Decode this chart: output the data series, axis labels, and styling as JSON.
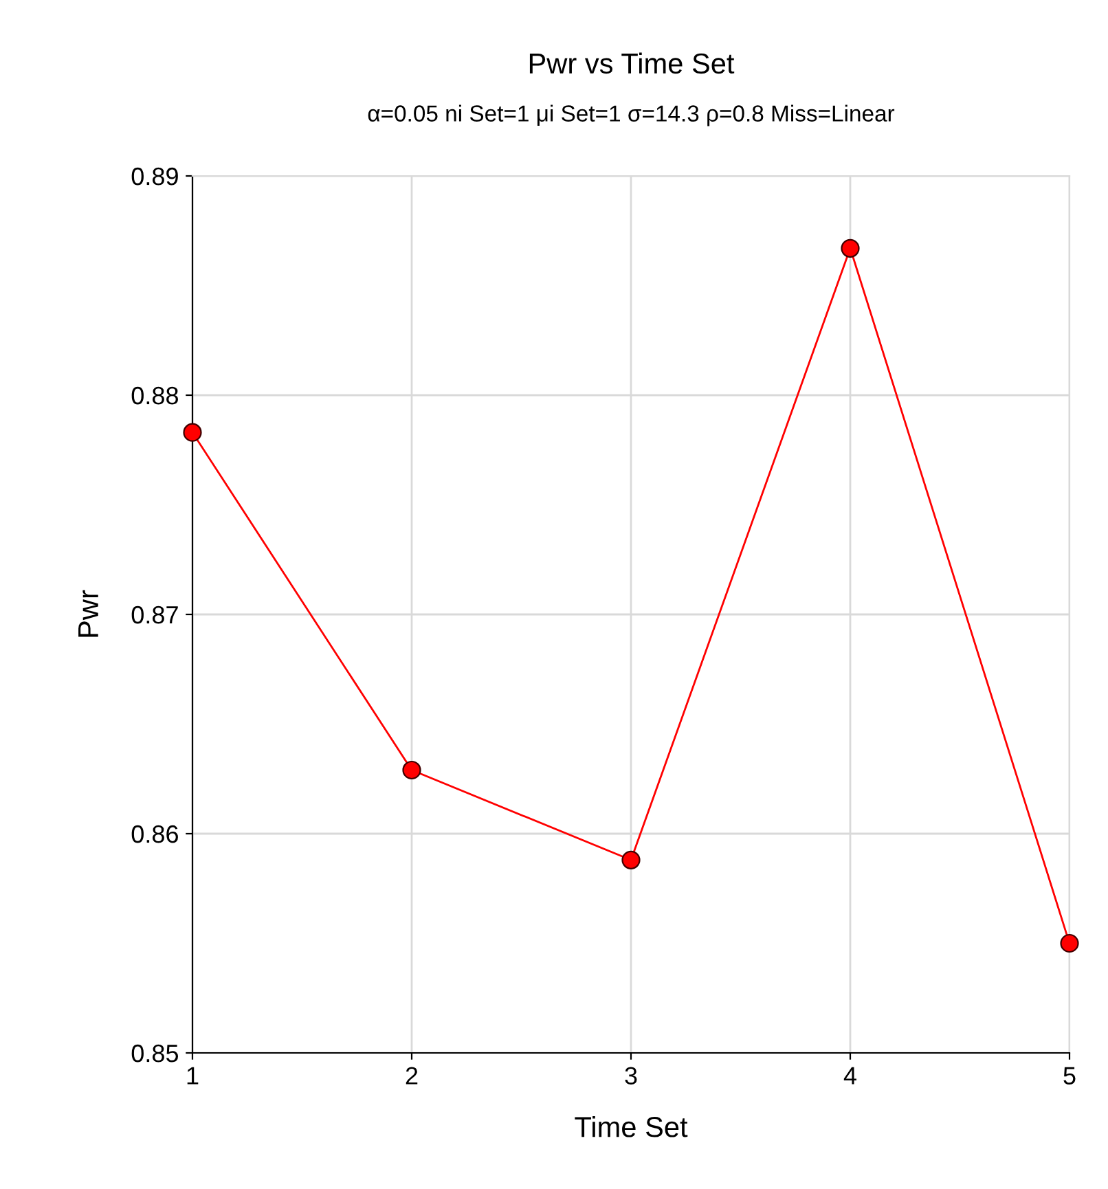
{
  "chart_data": {
    "type": "line",
    "title": "Pwr vs Time Set",
    "subtitle": "α=0.05 ni Set=1 μi Set=1 σ=14.3 ρ=0.8 Miss=Linear",
    "xlabel": "Time Set",
    "ylabel": "Pwr",
    "x": [
      1,
      2,
      3,
      4,
      5
    ],
    "series": [
      {
        "color": "#ff0000",
        "values": [
          0.8783,
          0.8629,
          0.8588,
          0.8867,
          0.855
        ]
      }
    ],
    "xlim": [
      1,
      5
    ],
    "xticks": [
      1,
      2,
      3,
      4,
      5
    ],
    "ylim": [
      0.85,
      0.89
    ],
    "yticks": [
      {
        "value": 0.85,
        "label": "0.85"
      },
      {
        "value": 0.86,
        "label": "0.86"
      },
      {
        "value": 0.87,
        "label": "0.87"
      },
      {
        "value": 0.88,
        "label": "0.88"
      },
      {
        "value": 0.89,
        "label": "0.89"
      }
    ],
    "grid": true,
    "marker": "circle",
    "line_style": "solid"
  }
}
